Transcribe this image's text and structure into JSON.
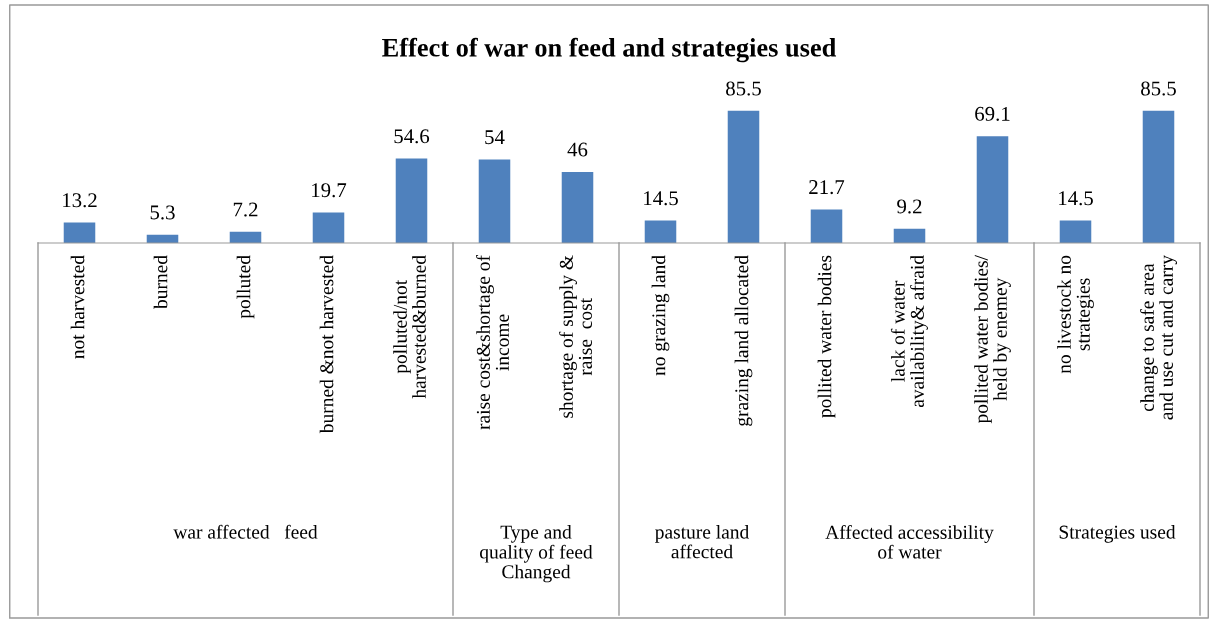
{
  "chart_data": {
    "type": "bar",
    "title": "Effect of war on feed and strategies used",
    "categories": [
      "not harvested",
      "burned",
      "polluted",
      "burned &not harvested",
      "polluted/not\nharvested&burned",
      "raise cost&shortage of\nincome",
      "shortage of supply &\nraise  cost",
      "no grazing land",
      "grazing land allocated",
      "pollited water bodies",
      "lack of water\navailability& afraid",
      "pollited water bodies/\nheld by enemey",
      "no livestock no\nstrategies",
      "change to safe area\nand use cut and carry"
    ],
    "values": [
      13.2,
      5.3,
      7.2,
      19.7,
      54.6,
      54,
      46,
      14.5,
      85.5,
      21.7,
      9.2,
      69.1,
      14.5,
      85.5
    ],
    "color": "#4f81bd",
    "data_labels": true,
    "annotations": [
      "war affected   feed",
      "Type and\nquality of feed\nChanged",
      "pasture land\naffected",
      "Affected accessibility\nof water",
      "Strategies used"
    ]
  }
}
